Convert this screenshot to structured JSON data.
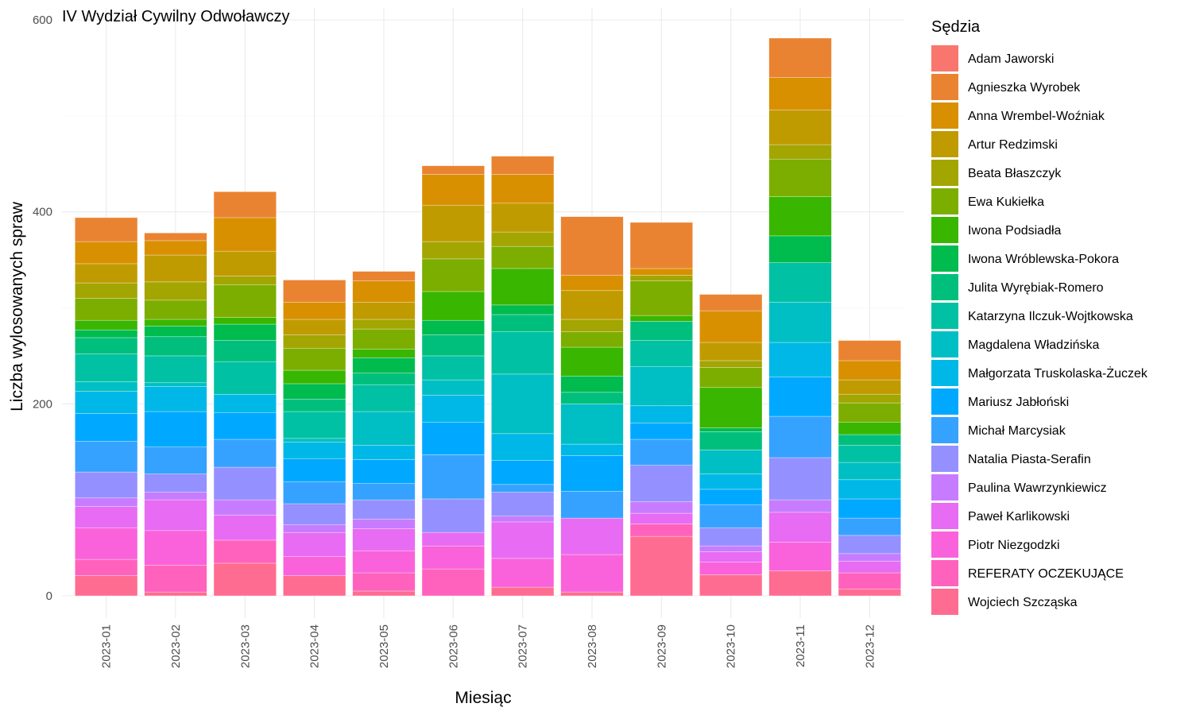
{
  "chart_data": {
    "type": "bar",
    "stacked": true,
    "title": "IV Wydział Cywilny Odwoławczy",
    "xlabel": "Miesiąc",
    "ylabel": "Liczba wylosowanych spraw",
    "ylim": [
      -22,
      600
    ],
    "yticks": [
      0,
      200,
      400,
      600
    ],
    "grid": true,
    "legend_title": "Sędzia",
    "legend_position": "right",
    "categories": [
      "2023-01",
      "2023-02",
      "2023-03",
      "2023-04",
      "2023-05",
      "2023-06",
      "2023-07",
      "2023-08",
      "2023-09",
      "2023-10",
      "2023-11",
      "2023-12"
    ],
    "series": [
      {
        "name": "Adam Jaworski",
        "color": "#F8766D",
        "values": [
          0,
          0,
          0,
          0,
          0,
          0,
          0,
          0,
          0,
          0,
          0,
          0
        ]
      },
      {
        "name": "Agnieszka Wyrobek",
        "color": "#EA8331",
        "values": [
          25,
          8,
          27,
          23,
          10,
          9,
          19,
          61,
          48,
          17,
          41,
          21
        ]
      },
      {
        "name": "Anna Wrembel-Woźniak",
        "color": "#D89000",
        "values": [
          23,
          15,
          35,
          18,
          22,
          32,
          30,
          16,
          7,
          33,
          34,
          20
        ]
      },
      {
        "name": "Artur Redzimski",
        "color": "#C09B00",
        "values": [
          20,
          28,
          26,
          16,
          18,
          38,
          30,
          30,
          0,
          19,
          36,
          15
        ]
      },
      {
        "name": "Beata Błaszczyk",
        "color": "#A3A500",
        "values": [
          16,
          19,
          9,
          14,
          10,
          18,
          15,
          13,
          6,
          7,
          15,
          9
        ]
      },
      {
        "name": "Ewa Kukiełka",
        "color": "#7CAE00",
        "values": [
          23,
          20,
          34,
          23,
          21,
          34,
          23,
          16,
          36,
          21,
          39,
          20
        ]
      },
      {
        "name": "Iwona Podsiadła",
        "color": "#39B600",
        "values": [
          10,
          7,
          7,
          14,
          9,
          30,
          38,
          30,
          6,
          42,
          41,
          13
        ]
      },
      {
        "name": "Iwona Wróblewska-Pokora",
        "color": "#00BB4E",
        "values": [
          8,
          11,
          17,
          16,
          16,
          15,
          10,
          17,
          0,
          4,
          28,
          0
        ]
      },
      {
        "name": "Julita Wyręb​iak-Romero",
        "color": "#00BF7D",
        "values": [
          17,
          20,
          22,
          13,
          12,
          22,
          18,
          12,
          20,
          19,
          0,
          11
        ]
      },
      {
        "name": "Katarzyna Ilczuk-Wojtkowska",
        "color": "#00C1A3",
        "values": [
          29,
          28,
          34,
          28,
          28,
          25,
          44,
          0,
          27,
          0,
          41,
          18
        ]
      },
      {
        "name": "Magdalena Władzińska",
        "color": "#00BFC4",
        "values": [
          10,
          4,
          0,
          4,
          35,
          16,
          62,
          42,
          41,
          25,
          42,
          18
        ]
      },
      {
        "name": "Małgorzata Truskolaska-Żuczek",
        "color": "#00B8E7",
        "values": [
          23,
          26,
          19,
          17,
          15,
          28,
          28,
          12,
          18,
          16,
          36,
          20
        ]
      },
      {
        "name": "Mariusz Jabłoński",
        "color": "#00A9FF",
        "values": [
          29,
          37,
          28,
          24,
          25,
          34,
          25,
          37,
          17,
          16,
          41,
          20
        ]
      },
      {
        "name": "Michał Marcysiak",
        "color": "#35A2FF",
        "values": [
          32,
          28,
          29,
          23,
          17,
          46,
          8,
          28,
          27,
          24,
          43,
          18
        ]
      },
      {
        "name": "Natalia Piasta-Serafin",
        "color": "#9590FF",
        "values": [
          27,
          19,
          34,
          22,
          20,
          35,
          25,
          0,
          38,
          19,
          44,
          19
        ]
      },
      {
        "name": "Paulina Wawrzynkiewicz",
        "color": "#C77CFF",
        "values": [
          9,
          8,
          16,
          8,
          10,
          0,
          6,
          0,
          12,
          6,
          13,
          8
        ]
      },
      {
        "name": "Paweł Karlikowski",
        "color": "#E76BF3",
        "values": [
          22,
          32,
          26,
          25,
          23,
          14,
          38,
          38,
          11,
          11,
          31,
          12
        ]
      },
      {
        "name": "Piotr Niezgodzki",
        "color": "#FA62DB",
        "values": [
          33,
          36,
          0,
          20,
          23,
          24,
          30,
          39,
          0,
          13,
          30,
          0
        ]
      },
      {
        "name": "REFERATY OCZEKUJĄCE",
        "color": "#FF62BC",
        "values": [
          17,
          28,
          24,
          0,
          19,
          28,
          0,
          0,
          13,
          0,
          0,
          17
        ]
      },
      {
        "name": "Wojciech Szcząska",
        "color": "#FF6C91",
        "values": [
          21,
          4,
          34,
          21,
          5,
          0,
          9,
          4,
          62,
          22,
          26,
          7
        ]
      }
    ]
  }
}
